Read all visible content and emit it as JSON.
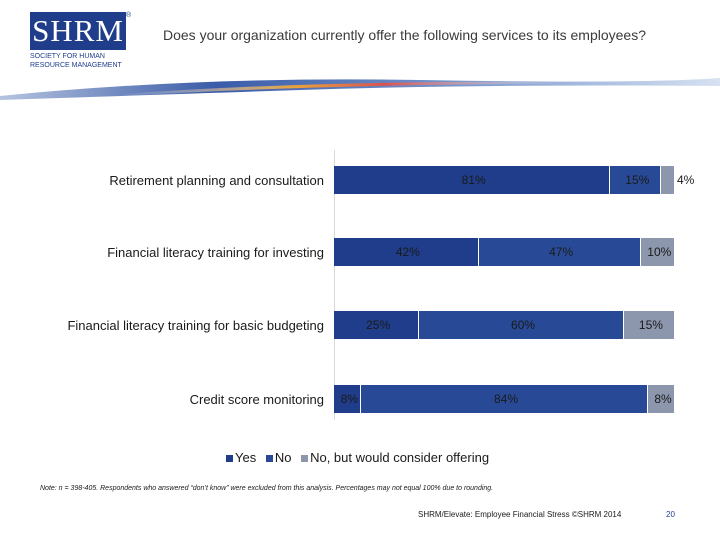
{
  "header": {
    "logo_text": "SHRM",
    "logo_subtitle": "SOCIETY FOR HUMAN RESOURCE MANAGEMENT",
    "logo_reg": "®",
    "title": "Does your organization currently offer the following services to its employees?"
  },
  "colors": {
    "yes": "#1f3d8a",
    "no": "#284a96",
    "consider": "#8c97ad"
  },
  "chart_data": {
    "type": "bar",
    "orientation": "horizontal-stacked",
    "categories": [
      "Retirement planning and consultation",
      "Financial literacy training for investing",
      "Financial literacy training for basic budgeting",
      "Credit score monitoring"
    ],
    "series": [
      {
        "name": "Yes",
        "values": [
          81,
          42,
          25,
          8
        ]
      },
      {
        "name": "No",
        "values": [
          15,
          47,
          60,
          84
        ]
      },
      {
        "name": "No, but would consider offering",
        "values": [
          4,
          10,
          15,
          8
        ]
      }
    ],
    "value_labels": [
      [
        "81%",
        "15%",
        "4%"
      ],
      [
        "42%",
        "47%",
        "10%"
      ],
      [
        "25%",
        "60%",
        "15%"
      ],
      [
        "8%",
        "84%",
        "8%"
      ]
    ],
    "legend_position": "bottom",
    "grid": false
  },
  "note": "Note: n = 398-405. Respondents who answered “don’t know” were excluded from this analysis. Percentages may not equal 100% due to rounding.",
  "footer": {
    "source": "SHRM/Elevate: Employee Financial Stress ©SHRM 2014",
    "page": "20"
  }
}
